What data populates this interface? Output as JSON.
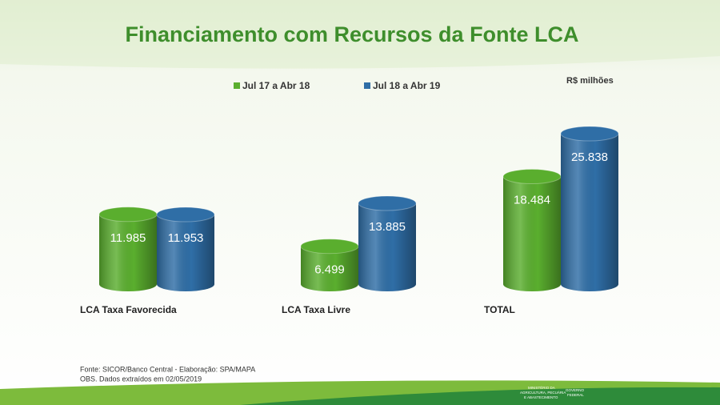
{
  "chart_data": {
    "type": "bar",
    "title": "Financiamento com Recursos da Fonte LCA",
    "unit_label": "R$ milhões",
    "categories": [
      "LCA Taxa Favorecida",
      "LCA Taxa Livre",
      "TOTAL"
    ],
    "series": [
      {
        "name": "Jul 17 a Abr 18",
        "color": "#5aae2e",
        "values": [
          11985,
          6499,
          18484
        ],
        "value_labels": [
          "11.985",
          "6.499",
          "18.484"
        ]
      },
      {
        "name": "Jul 18 a Abr 19",
        "color": "#2f6ea6",
        "values": [
          11953,
          13885,
          25838
        ],
        "value_labels": [
          "11.953",
          "13.885",
          "25.838"
        ]
      }
    ],
    "source": "Fonte: SICOR/Banco Central - Elaboração: SPA/MAPA",
    "note": "OBS. Dados extraídos em 02/05/2019",
    "footer_logo": [
      "MINISTÉRIO DA",
      "AGRICULTURA, PECUÁRIA",
      "E ABASTECIMENTO",
      "GOVERNO",
      "FEDERAL"
    ]
  }
}
